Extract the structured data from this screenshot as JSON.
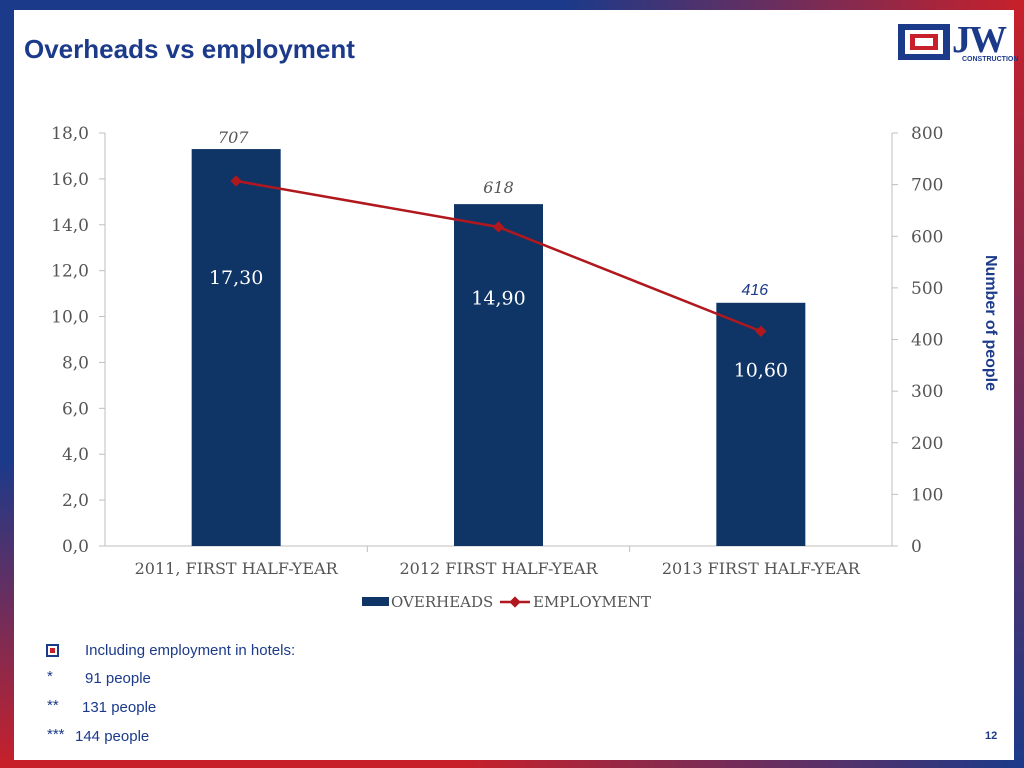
{
  "title": "Overheads vs employment",
  "logo": {
    "name": "JW",
    "sub": "CONSTRUCTION"
  },
  "chart_data": {
    "type": "bar",
    "categories": [
      "2011, FIRST HALF-YEAR",
      "2012 FIRST HALF-YEAR",
      "2013 FIRST HALF-YEAR"
    ],
    "series": [
      {
        "name": "OVERHEADS",
        "type": "bar",
        "axis": "left",
        "values": [
          17.3,
          14.9,
          10.6
        ],
        "labels": [
          "17,30",
          "14,90",
          "10,60"
        ],
        "color": "#0f3566"
      },
      {
        "name": "EMPLOYMENT",
        "type": "line",
        "axis": "right",
        "values": [
          707,
          618,
          416
        ],
        "labels": [
          "707",
          "618",
          "416"
        ],
        "color": "#b0181e"
      }
    ],
    "y_left": {
      "min": 0,
      "max": 18,
      "ticks": [
        "0,0",
        "2,0",
        "4,0",
        "6,0",
        "8,0",
        "10,0",
        "12,0",
        "14,0",
        "16,0",
        "18,0"
      ]
    },
    "y_right": {
      "min": 0,
      "max": 800,
      "ticks": [
        "0",
        "100",
        "200",
        "300",
        "400",
        "500",
        "600",
        "700",
        "800"
      ],
      "label": "Number of people"
    },
    "legend": "bottom",
    "grid": false
  },
  "notes": {
    "heading": "Including employment in hotels:",
    "lines": [
      {
        "marker": "*",
        "text": "91 people"
      },
      {
        "marker": "**",
        "text": "131 people"
      },
      {
        "marker": "***",
        "text": "144 people"
      }
    ]
  },
  "page_number": "12",
  "colors": {
    "brand_blue": "#1b3a8a",
    "bar": "#0f3566",
    "line": "#b0181e"
  }
}
